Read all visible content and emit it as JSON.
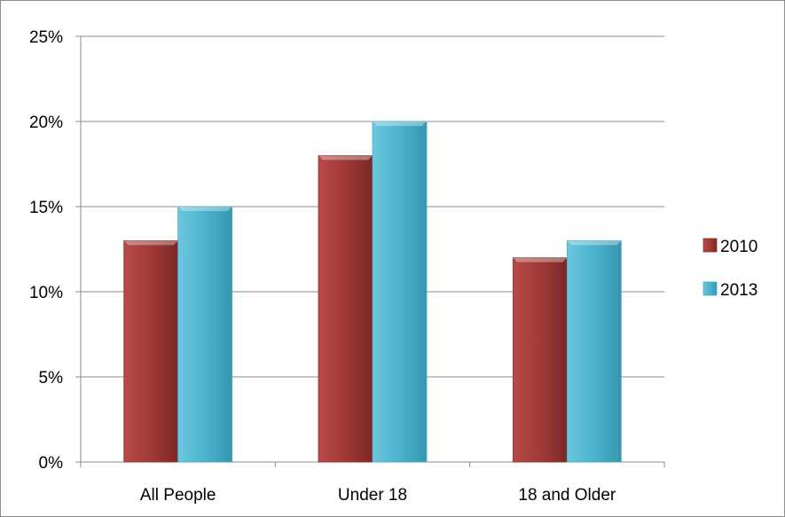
{
  "chart_data": {
    "type": "bar",
    "categories": [
      "All People",
      "Under 18",
      "18 and Older"
    ],
    "series": [
      {
        "name": "2010",
        "values": [
          13,
          18,
          12
        ],
        "color": "#943634"
      },
      {
        "name": "2013",
        "values": [
          15,
          20,
          13
        ],
        "color": "#4bacc6"
      }
    ],
    "yticks": [
      "0%",
      "5%",
      "10%",
      "15%",
      "20%",
      "25%"
    ],
    "ylim": [
      0,
      25
    ],
    "ystep": 5,
    "grid": true,
    "legend_position": "right",
    "title": "",
    "xlabel": "",
    "ylabel": ""
  }
}
